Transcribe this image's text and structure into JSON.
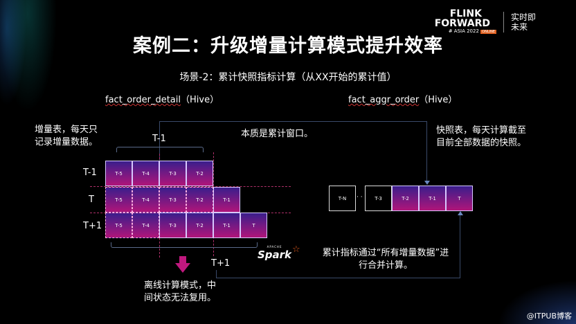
{
  "logo": {
    "line1": "FLINK",
    "line2": "FORWARD",
    "line3": "# ASIA 2022",
    "badge": "ONLINE",
    "cn1": "实时即",
    "cn2": "未来"
  },
  "title": "案例二：升级增量计算模式提升效率",
  "subtitle": "场景-2：累计快照指标计算（从XX开始的累计值）",
  "left_table": {
    "name": "fact_order_detail",
    "suffix": "（Hive）"
  },
  "right_table": {
    "name": "fact_aggr_order",
    "suffix": "（Hive）"
  },
  "left_note": [
    "增量表，每天只",
    "记录增量数据。"
  ],
  "center_note": "本质是累计窗口。",
  "right_note": [
    "快照表，每天计算截至",
    "目前全部数据的快照。"
  ],
  "brace_top_label": "T-1",
  "brace_bottom_label": "T+1",
  "rows": [
    {
      "label": "T-1",
      "cells": [
        "T-5",
        "T-4",
        "T-3",
        "T-2"
      ]
    },
    {
      "label": "T",
      "cells": [
        "T-5",
        "T-4",
        "T-3",
        "T-2",
        "T-1"
      ]
    },
    {
      "label": "T+1",
      "cells": [
        "T-5",
        "T-4",
        "T-3",
        "T-2",
        "T-1",
        "T"
      ]
    }
  ],
  "snapshot": {
    "cells": [
      "T-N",
      "T-3",
      "T-2",
      "T-1",
      "T"
    ],
    "ellipsis": "· ·"
  },
  "spark_logo": {
    "apache": "APACHE",
    "name": "Spark"
  },
  "spark_note": [
    "累计指标通过“所有增量数据”进",
    "行合并计算。"
  ],
  "offline_note": [
    "离线计算模式，中",
    "间状态无法复用。"
  ],
  "watermark": "@ITPUB博客",
  "colors": {
    "cell_top": "#3a1e8c",
    "cell_bottom": "#b0157a",
    "arrow": "#c0187e"
  }
}
